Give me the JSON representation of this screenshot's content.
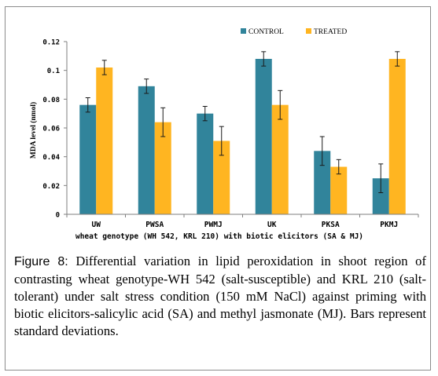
{
  "chart_data": {
    "type": "bar",
    "categories": [
      "UW",
      "PWSA",
      "PWMJ",
      "UK",
      "PKSA",
      "PKMJ"
    ],
    "series": [
      {
        "name": "CONTROL",
        "color": "#31849b",
        "values": [
          0.076,
          0.089,
          0.07,
          0.108,
          0.044,
          0.025
        ],
        "errors": [
          0.005,
          0.005,
          0.005,
          0.005,
          0.01,
          0.01
        ]
      },
      {
        "name": "TREATED",
        "color": "#ffb521",
        "values": [
          0.102,
          0.064,
          0.051,
          0.076,
          0.033,
          0.108
        ],
        "errors": [
          0.005,
          0.01,
          0.01,
          0.01,
          0.005,
          0.005
        ]
      }
    ],
    "xlabel": "wheat genotype (WH 542, KRL 210) with biotic elicitors (SA & MJ)",
    "ylabel": "MDA level (nmol)",
    "ylim": [
      0,
      0.12
    ],
    "yticks": [
      0,
      0.02,
      0.04,
      0.06,
      0.08,
      0.1,
      0.12
    ],
    "ytick_labels": [
      "0",
      "0.02",
      "0.04",
      "0.06",
      "0.08",
      "0.1",
      "0.12"
    ],
    "legend_position": "top-right",
    "grid": false
  },
  "caption": {
    "lead": "Figure 8:",
    "text": " Differential variation in lipid peroxidation in shoot region of contrasting wheat genotype-WH 542 (salt-susceptible) and KRL 210 (salt-tolerant) under salt stress condition (150 mM NaCl) against priming with biotic elicitors-salicylic acid (SA) and methyl jasmonate (MJ). Bars represent standard deviations."
  }
}
